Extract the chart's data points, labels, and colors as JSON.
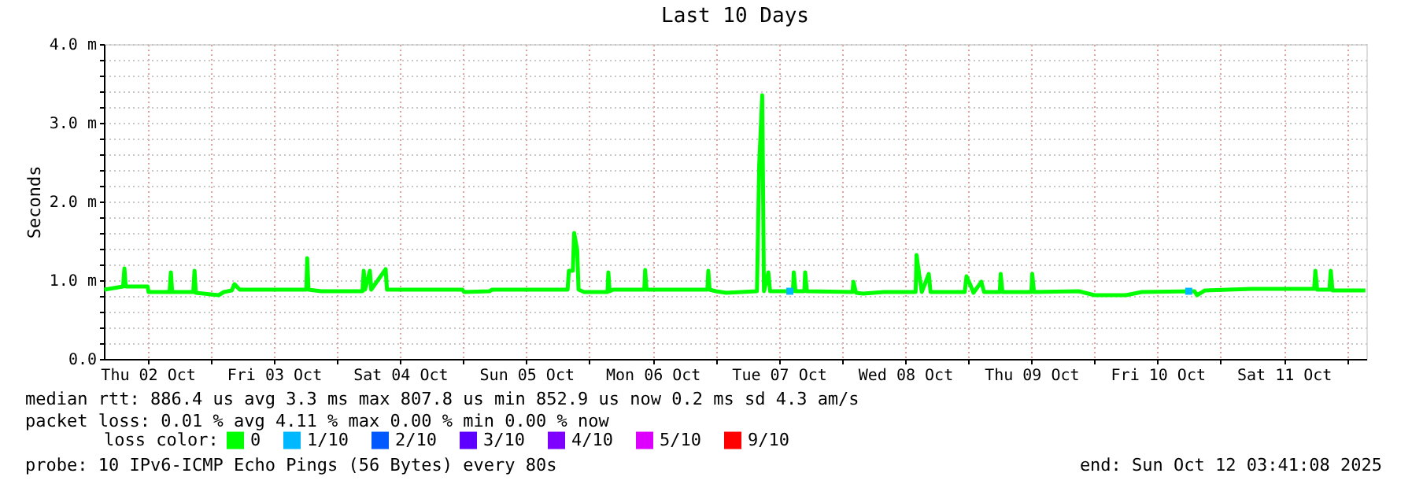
{
  "chart_data": {
    "type": "line",
    "title": "Last 10 Days",
    "ylabel": "Seconds",
    "legend_title": "loss color:",
    "xlim": [
      "2025-10-02T03:41",
      "2025-10-12T03:41"
    ],
    "xticks": [
      {
        "value": "2025-10-02T12:00",
        "label": "Thu 02 Oct"
      },
      {
        "value": "2025-10-03T00:00",
        "label": null
      },
      {
        "value": "2025-10-03T12:00",
        "label": "Fri 03 Oct"
      },
      {
        "value": "2025-10-04T00:00",
        "label": null
      },
      {
        "value": "2025-10-04T12:00",
        "label": "Sat 04 Oct"
      },
      {
        "value": "2025-10-05T00:00",
        "label": null
      },
      {
        "value": "2025-10-05T12:00",
        "label": "Sun 05 Oct"
      },
      {
        "value": "2025-10-06T00:00",
        "label": null
      },
      {
        "value": "2025-10-06T12:00",
        "label": "Mon 06 Oct"
      },
      {
        "value": "2025-10-07T00:00",
        "label": null
      },
      {
        "value": "2025-10-07T12:00",
        "label": "Tue 07 Oct"
      },
      {
        "value": "2025-10-08T00:00",
        "label": null
      },
      {
        "value": "2025-10-08T12:00",
        "label": "Wed 08 Oct"
      },
      {
        "value": "2025-10-09T00:00",
        "label": null
      },
      {
        "value": "2025-10-09T12:00",
        "label": "Thu 09 Oct"
      },
      {
        "value": "2025-10-10T00:00",
        "label": null
      },
      {
        "value": "2025-10-10T12:00",
        "label": "Fri 10 Oct"
      },
      {
        "value": "2025-10-11T00:00",
        "label": null
      },
      {
        "value": "2025-10-11T12:00",
        "label": "Sat 11 Oct"
      },
      {
        "value": "2025-10-12T00:00",
        "label": null
      }
    ],
    "ylim": [
      0,
      4
    ],
    "yticks": [
      {
        "value": 0,
        "label": "0.0"
      },
      {
        "value": 0.2,
        "label": null
      },
      {
        "value": 0.4,
        "label": null
      },
      {
        "value": 0.6,
        "label": null
      },
      {
        "value": 0.8,
        "label": null
      },
      {
        "value": 1,
        "label": "1.0 m"
      },
      {
        "value": 1.2,
        "label": null
      },
      {
        "value": 1.4,
        "label": null
      },
      {
        "value": 1.6,
        "label": null
      },
      {
        "value": 1.8,
        "label": null
      },
      {
        "value": 2,
        "label": "2.0 m"
      },
      {
        "value": 2.2,
        "label": null
      },
      {
        "value": 2.4,
        "label": null
      },
      {
        "value": 2.6,
        "label": null
      },
      {
        "value": 2.8,
        "label": null
      },
      {
        "value": 3,
        "label": "3.0 m"
      },
      {
        "value": 3.2,
        "label": null
      },
      {
        "value": 3.4,
        "label": null
      },
      {
        "value": 3.6,
        "label": null
      },
      {
        "value": 3.8,
        "label": null
      },
      {
        "value": 4,
        "label": "4.0 m"
      }
    ],
    "grid": true,
    "legend": "bottom",
    "series": [
      {
        "name": "0",
        "color": "#00ff00",
        "x": [
          "2025-10-02T03:45",
          "2025-10-02T07:20",
          "2025-10-02T07:35",
          "2025-10-02T07:50",
          "2025-10-02T12:00",
          "2025-10-02T12:10",
          "2025-10-02T16:10",
          "2025-10-02T16:25",
          "2025-10-02T16:40",
          "2025-10-02T20:40",
          "2025-10-02T20:55",
          "2025-10-02T21:10",
          "2025-10-03T00:00",
          "2025-10-03T01:30",
          "2025-10-03T02:30",
          "2025-10-03T04:00",
          "2025-10-03T04:30",
          "2025-10-03T05:30",
          "2025-10-03T18:10",
          "2025-10-03T18:20",
          "2025-10-03T18:35",
          "2025-10-03T21:00",
          "2025-10-04T04:50",
          "2025-10-04T05:05",
          "2025-10-04T05:20",
          "2025-10-04T06:15",
          "2025-10-04T06:30",
          "2025-10-04T09:15",
          "2025-10-04T09:30",
          "2025-10-04T23:50",
          "2025-10-05T00:10",
          "2025-10-05T05:00",
          "2025-10-05T05:30",
          "2025-10-05T19:50",
          "2025-10-05T20:05",
          "2025-10-05T20:50",
          "2025-10-05T21:05",
          "2025-10-05T21:40",
          "2025-10-05T21:55",
          "2025-10-05T23:00",
          "2025-10-06T03:25",
          "2025-10-06T03:35",
          "2025-10-06T03:50",
          "2025-10-06T04:30",
          "2025-10-06T10:25",
          "2025-10-06T10:35",
          "2025-10-06T10:50",
          "2025-10-06T22:25",
          "2025-10-06T22:35",
          "2025-10-06T22:50",
          "2025-10-07T00:00",
          "2025-10-07T02:00",
          "2025-10-07T07:50",
          "2025-10-07T08:15",
          "2025-10-07T08:50",
          "2025-10-07T09:10",
          "2025-10-07T10:00",
          "2025-10-07T10:20",
          "2025-10-07T14:40",
          "2025-10-07T14:50",
          "2025-10-07T15:10",
          "2025-10-07T16:50",
          "2025-10-07T17:00",
          "2025-10-07T17:20",
          "2025-10-08T02:00",
          "2025-10-08T02:10",
          "2025-10-08T02:40",
          "2025-10-08T04:00",
          "2025-10-08T08:00",
          "2025-10-08T14:00",
          "2025-10-08T14:10",
          "2025-10-08T14:40",
          "2025-10-08T15:10",
          "2025-10-08T16:30",
          "2025-10-08T16:50",
          "2025-10-08T23:20",
          "2025-10-08T23:40",
          "2025-10-09T00:20",
          "2025-10-09T01:00",
          "2025-10-09T02:30",
          "2025-10-09T03:00",
          "2025-10-09T06:00",
          "2025-10-09T06:10",
          "2025-10-09T06:30",
          "2025-10-09T12:00",
          "2025-10-09T12:10",
          "2025-10-09T12:30",
          "2025-10-09T21:00",
          "2025-10-10T00:00",
          "2025-10-10T06:00",
          "2025-10-10T09:00",
          "2025-10-10T19:00",
          "2025-10-10T19:30",
          "2025-10-10T21:00",
          "2025-10-11T06:00",
          "2025-10-11T17:45",
          "2025-10-11T18:00",
          "2025-10-11T18:20",
          "2025-10-11T20:40",
          "2025-10-11T20:55",
          "2025-10-11T21:15",
          "2025-10-12T03:30"
        ],
        "values": [
          0.88,
          0.92,
          1.15,
          0.92,
          0.92,
          0.85,
          0.85,
          1.1,
          0.85,
          0.85,
          1.12,
          0.84,
          0.82,
          0.81,
          0.85,
          0.87,
          0.95,
          0.88,
          0.88,
          1.28,
          0.88,
          0.86,
          0.86,
          1.12,
          0.88,
          1.12,
          0.88,
          1.14,
          0.88,
          0.88,
          0.85,
          0.86,
          0.88,
          0.88,
          1.12,
          1.12,
          1.6,
          1.38,
          0.88,
          0.85,
          0.85,
          1.1,
          0.86,
          0.88,
          0.88,
          1.13,
          0.88,
          0.88,
          1.12,
          0.88,
          0.86,
          0.84,
          0.86,
          2.45,
          3.35,
          0.86,
          1.1,
          0.86,
          0.86,
          1.1,
          0.86,
          0.86,
          1.1,
          0.86,
          0.85,
          0.98,
          0.84,
          0.83,
          0.85,
          0.85,
          1.32,
          1.08,
          0.85,
          1.08,
          0.85,
          0.85,
          1.05,
          0.95,
          0.84,
          0.98,
          0.85,
          0.85,
          1.08,
          0.85,
          0.85,
          1.08,
          0.85,
          0.86,
          0.81,
          0.81,
          0.85,
          0.86,
          0.81,
          0.87,
          0.89,
          0.89,
          1.12,
          0.88,
          0.88,
          1.12,
          0.87,
          0.87
        ]
      },
      {
        "name": "1/10",
        "color": "#00b8ff",
        "type": "scatter",
        "x": [
          "2025-10-07T14:05",
          "2025-10-10T17:55"
        ],
        "values": [
          0.86,
          0.86
        ]
      },
      {
        "name": "2/10",
        "color": "#0059ff"
      },
      {
        "name": "3/10",
        "color": "#5e00ff"
      },
      {
        "name": "4/10",
        "color": "#7e00ff"
      },
      {
        "name": "5/10",
        "color": "#dd00ff"
      },
      {
        "name": "9/10",
        "color": "#ff0000"
      }
    ],
    "annotations": [
      "median rtt:  886.4 us avg  3.3 ms max  807.8 us min  852.9 us now  0.2 ms sd  4.3   am/s",
      "packet loss: 0.01 % avg  4.11 % max  0.00 % min  0.00 % now",
      "probe:       10 IPv6-ICMP Echo Pings (56 Bytes) every 80s",
      "end: Sun Oct 12 03:41:08 2025"
    ]
  }
}
